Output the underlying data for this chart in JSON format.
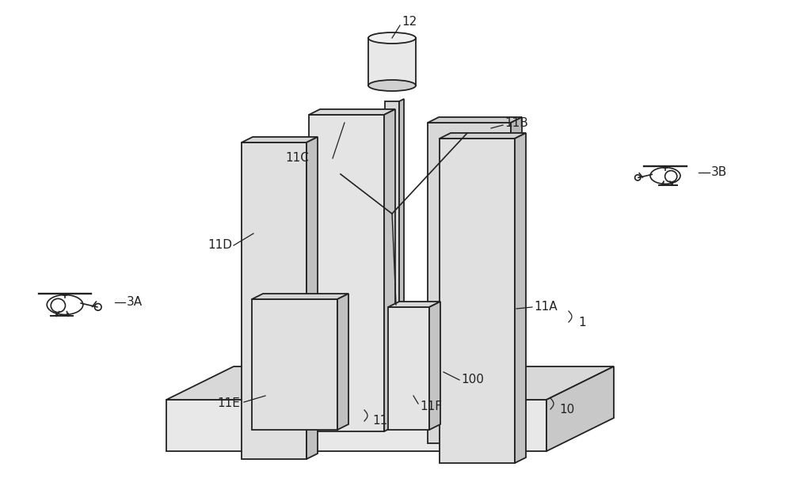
{
  "bg_color": "#ffffff",
  "line_color": "#222222",
  "panels": {
    "11A": {
      "face": "#e0e0e0",
      "side": "#c0c0c0",
      "top": "#d0d0d0"
    },
    "11B": {
      "face": "#d8d8d8",
      "side": "#b8b8b8",
      "top": "#cccccc"
    },
    "11C": {
      "face": "#e4e4e4",
      "side": "#c4c4c4",
      "top": "#d8d8d8"
    },
    "11D": {
      "face": "#e0e0e0",
      "side": "#c0c0c0",
      "top": "#d4d4d4"
    },
    "11E": {
      "face": "#e0e0e0",
      "side": "#c0c0c0",
      "top": "#d4d4d4"
    },
    "11F": {
      "face": "#e4e4e4",
      "side": "#c4c4c4",
      "top": "#d8d8d8"
    }
  },
  "base": {
    "face": "#e8e8e8",
    "side": "#c8c8c8",
    "top": "#d8d8d8"
  },
  "small_box": {
    "face": "#ebebeb",
    "side": "#cccccc",
    "top": "#dedede"
  },
  "cylinder": {
    "face": "#e8e8e8",
    "side": "#d0d0d0",
    "top": "#f0f0f0"
  },
  "mast": {
    "face": "#d8d8d8",
    "side": "#c0c0c0"
  },
  "label_fontsize": 11
}
